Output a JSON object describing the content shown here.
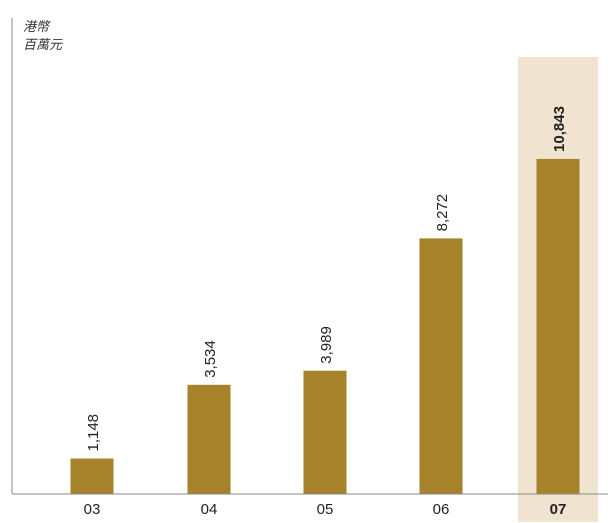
{
  "unit_label": [
    "港幣",
    "百萬元"
  ],
  "colors": {
    "bar": "#a6822a",
    "highlight_band": "#f0e3cf",
    "axis": "#8a8a8a",
    "text": "#222222"
  },
  "chart_data": {
    "type": "bar",
    "categories": [
      "03",
      "04",
      "05",
      "06",
      "07"
    ],
    "values": [
      1148,
      3534,
      3989,
      8272,
      10843
    ],
    "value_labels": [
      "1,148",
      "3,534",
      "3,989",
      "8,272",
      "10,843"
    ],
    "highlight_category": "07",
    "ylabel": "港幣 百萬元",
    "xlabel": "",
    "ylim": [
      0,
      13000
    ],
    "grid": false,
    "legend": "none"
  }
}
